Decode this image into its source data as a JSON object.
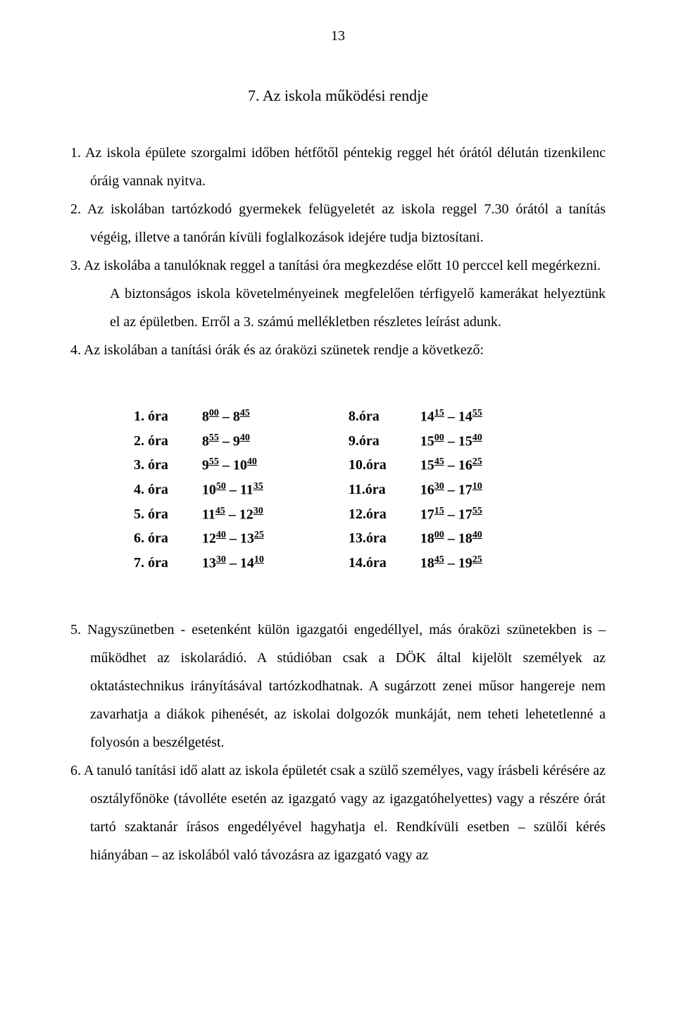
{
  "pageNumber": "13",
  "sectionTitle": "7. Az iskola működési rendje",
  "items": [
    {
      "n": "1.",
      "text": "Az iskola épülete szorgalmi időben hétfőtől péntekig reggel hét órától délután tizenkilenc óráig vannak nyitva."
    },
    {
      "n": "2.",
      "text": "Az iskolában tartózkodó gyermekek felügyeletét az iskola reggel 7.30 órától a tanítás végéig, illetve a tanórán kívüli foglalkozások idejére tudja biztosítani."
    },
    {
      "n": "3.",
      "text": "Az iskolába a tanulóknak reggel a tanítási óra megkezdése előtt 10 perccel kell megérkezni.",
      "extra": "A biztonságos iskola követelményeinek megfelelően térfigyelő kamerákat helyeztünk el az épületben. Erről a 3. számú mellékletben részletes leírást adunk."
    },
    {
      "n": "4.",
      "text": "Az iskolában a tanítási órák és az óraközi szünetek rendje a következő:"
    }
  ],
  "schedule": {
    "left": [
      {
        "label": "1. óra",
        "t1h": "8",
        "t1m": "00",
        "t2h": "8",
        "t2m": "45"
      },
      {
        "label": "2. óra",
        "t1h": "8",
        "t1m": "55",
        "t2h": "9",
        "t2m": "40"
      },
      {
        "label": "3. óra",
        "t1h": "9",
        "t1m": "55",
        "t2h": "10",
        "t2m": "40"
      },
      {
        "label": "4. óra",
        "t1h": "10",
        "t1m": "50",
        "t2h": "11",
        "t2m": "35"
      },
      {
        "label": "5. óra",
        "t1h": "11",
        "t1m": "45",
        "t2h": "12",
        "t2m": "30"
      },
      {
        "label": "6. óra",
        "t1h": "12",
        "t1m": "40",
        "t2h": "13",
        "t2m": "25"
      },
      {
        "label": "7. óra",
        "t1h": "13",
        "t1m": "30",
        "t2h": "14",
        "t2m": "10"
      }
    ],
    "right": [
      {
        "label": "8.óra",
        "t1h": "14",
        "t1m": "15",
        "t2h": "14",
        "t2m": "55"
      },
      {
        "label": "9.óra",
        "t1h": "15",
        "t1m": "00",
        "t2h": "15",
        "t2m": "40"
      },
      {
        "label": "10.óra",
        "t1h": "15",
        "t1m": "45",
        "t2h": "16",
        "t2m": "25"
      },
      {
        "label": "11.óra",
        "t1h": "16",
        "t1m": "30",
        "t2h": "17",
        "t2m": "10"
      },
      {
        "label": "12.óra",
        "t1h": "17",
        "t1m": "15",
        "t2h": "17",
        "t2m": "55"
      },
      {
        "label": "13.óra",
        "t1h": "18",
        "t1m": "00",
        "t2h": "18",
        "t2m": "40"
      },
      {
        "label": "14.óra",
        "t1h": "18",
        "t1m": "45",
        "t2h": "19",
        "t2m": "25"
      }
    ]
  },
  "bottomItems": [
    {
      "n": "5.",
      "text": "Nagyszünetben - esetenként külön igazgatói engedéllyel, más óraközi szünetekben is – működhet az iskolarádió. A stúdióban csak a DÖK által kijelölt személyek az oktatástechnikus irányításával tartózkodhatnak. A sugárzott zenei műsor hangereje nem zavarhatja a diákok pihenését, az iskolai dolgozók munkáját, nem teheti lehetetlenné a folyosón a beszélgetést."
    },
    {
      "n": "6.",
      "text": "A tanuló tanítási idő alatt az iskola épületét csak a szülő személyes, vagy írásbeli kérésére az osztályfőnöke (távolléte esetén az igazgató vagy az igazgatóhelyettes) vagy a részére órát tartó szaktanár írásos engedélyével hagyhatja el. Rendkívüli esetben – szülői kérés hiányában – az iskolából való távozásra az igazgató vagy az"
    }
  ]
}
